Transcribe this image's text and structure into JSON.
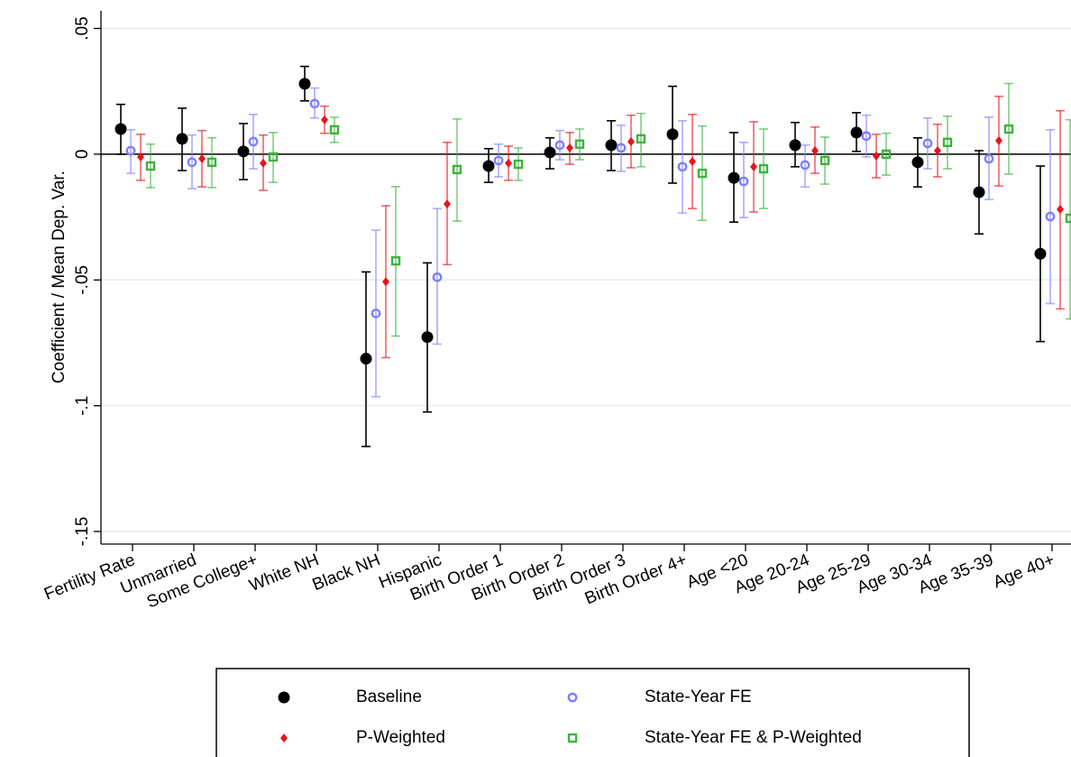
{
  "chart_data": {
    "type": "coefplot",
    "ylabel": "Coefficient / Mean Dep. Var.",
    "categories": [
      "Fertility Rate",
      "Unmarried",
      "Some College+",
      "White NH",
      "Black NH",
      "Hispanic",
      "Birth Order 1",
      "Birth Order 2",
      "Birth Order 3",
      "Birth Order 4+",
      "Age <20",
      "Age 20-24",
      "Age 25-29",
      "Age 30-34",
      "Age 35-39",
      "Age 40+"
    ],
    "ylim": [
      -0.155,
      0.057
    ],
    "yticks": [
      {
        "value": 0.05,
        "label": ".05"
      },
      0,
      {
        "value": -0.05,
        "label": "-.05"
      },
      {
        "value": -0.1,
        "label": "-.1"
      },
      {
        "value": -0.15,
        "label": "-.15"
      }
    ],
    "grid": true,
    "hline": 0,
    "series": [
      {
        "name": "Baseline",
        "color": "#000000",
        "marker": "circle",
        "values": [
          0.01,
          0.0061,
          0.0011,
          0.028,
          -0.0813,
          -0.0727,
          -0.0047,
          0.0007,
          0.0036,
          0.0079,
          -0.0094,
          0.0036,
          0.0086,
          -0.0032,
          -0.0151,
          -0.0396
        ],
        "lower": [
          0,
          -0.0065,
          -0.0101,
          0.0212,
          -0.1162,
          -0.1025,
          -0.0112,
          -0.0058,
          -0.0065,
          -0.0115,
          -0.027,
          -0.005,
          0.0011,
          -0.013,
          -0.0317,
          -0.0745
        ],
        "upper": [
          0.0198,
          0.0183,
          0.0122,
          0.0349,
          -0.0468,
          -0.0432,
          0.0022,
          0.0065,
          0.0133,
          0.027,
          0.0086,
          0.0126,
          0.0165,
          0.0065,
          0.0014,
          -0.0047
        ]
      },
      {
        "name": "State-Year FE",
        "color": "#7f7fff",
        "marker": "hollow-circle",
        "values": [
          0.0014,
          -0.0032,
          0.005,
          0.0201,
          -0.0633,
          -0.0489,
          -0.0025,
          0.0036,
          0.0025,
          -0.005,
          -0.0108,
          -0.0043,
          0.0072,
          0.0043,
          -0.0018,
          -0.0248
        ],
        "lower": [
          -0.0076,
          -0.0137,
          -0.0058,
          0.0144,
          -0.0964,
          -0.0755,
          -0.009,
          -0.0022,
          -0.0068,
          -0.0234,
          -0.0252,
          -0.013,
          -0.0011,
          -0.0058,
          -0.018,
          -0.0594
        ],
        "upper": [
          0.0097,
          0.0076,
          0.0158,
          0.0263,
          -0.0302,
          -0.0216,
          0.004,
          0.0094,
          0.0115,
          0.0133,
          0.0047,
          0.0036,
          0.0155,
          0.0144,
          0.0147,
          0.0097
        ]
      },
      {
        "name": "P-Weighted",
        "color": "#e8141c",
        "marker": "diamond",
        "values": [
          -0.0011,
          -0.0018,
          -0.0036,
          0.0137,
          -0.0507,
          -0.0198,
          -0.0036,
          0.0025,
          0.005,
          -0.0029,
          -0.005,
          0.0014,
          -0.0007,
          0.0014,
          0.0054,
          -0.0219
        ],
        "lower": [
          -0.0104,
          -0.013,
          -0.0144,
          0.0083,
          -0.0809,
          -0.0439,
          -0.0104,
          -0.004,
          -0.0054,
          -0.0216,
          -0.023,
          -0.0076,
          -0.0094,
          -0.009,
          -0.0126,
          -0.0615
        ],
        "upper": [
          0.0079,
          0.0094,
          0.0076,
          0.0191,
          -0.0205,
          0.0047,
          0.0032,
          0.0086,
          0.0155,
          0.0158,
          0.0129,
          0.0108,
          0.0079,
          0.0119,
          0.023,
          0.0173
        ]
      },
      {
        "name": "State-Year FE & P-Weighted",
        "color": "#3cb43c",
        "marker": "hollow-square",
        "values": [
          -0.0047,
          -0.0032,
          -0.0011,
          0.0097,
          -0.0424,
          -0.0061,
          -0.004,
          0.004,
          0.0061,
          -0.0076,
          -0.0058,
          -0.0025,
          0,
          0.0047,
          0.01,
          -0.0255
        ],
        "lower": [
          -0.0133,
          -0.0133,
          -0.0112,
          0.0047,
          -0.0723,
          -0.0266,
          -0.0104,
          -0.0022,
          -0.005,
          -0.0263,
          -0.0216,
          -0.0119,
          -0.0083,
          -0.0058,
          -0.0079,
          -0.0655
        ],
        "upper": [
          0.004,
          0.0065,
          0.0086,
          0.0147,
          -0.0129,
          0.014,
          0.0025,
          0.01,
          0.0162,
          0.0112,
          0.01,
          0.0068,
          0.0083,
          0.0151,
          0.0281,
          0.0137
        ]
      }
    ]
  }
}
